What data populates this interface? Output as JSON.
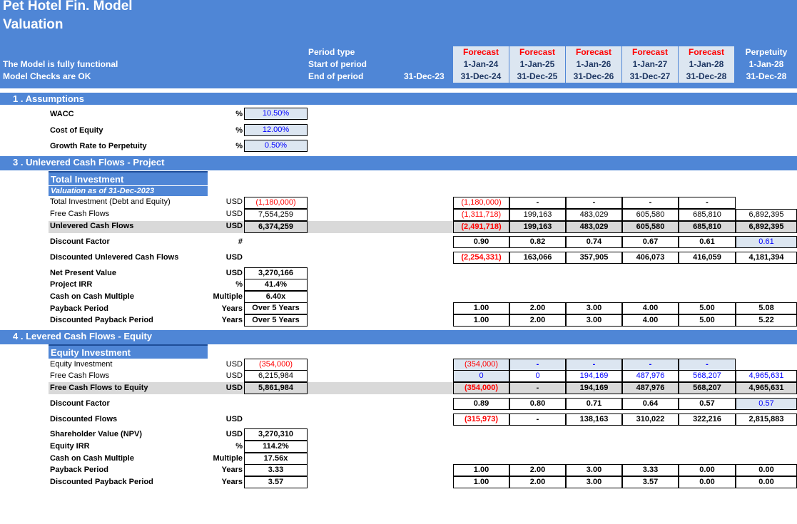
{
  "header": {
    "title": "Pet Hotel Fin. Model",
    "subtitle": "Valuation",
    "status_line_1": "The Model is fully functional",
    "status_line_2": "Model Checks are OK",
    "row_labels": [
      "Period type",
      "Start of period",
      "End of period"
    ],
    "base_date": "31-Dec-23",
    "periods": [
      {
        "type": "Forecast",
        "start": "1-Jan-24",
        "end": "31-Dec-24"
      },
      {
        "type": "Forecast",
        "start": "1-Jan-25",
        "end": "31-Dec-25"
      },
      {
        "type": "Forecast",
        "start": "1-Jan-26",
        "end": "31-Dec-26"
      },
      {
        "type": "Forecast",
        "start": "1-Jan-27",
        "end": "31-Dec-27"
      },
      {
        "type": "Forecast",
        "start": "1-Jan-28",
        "end": "31-Dec-28"
      },
      {
        "type": "Perpetuity",
        "start": "1-Jan-28",
        "end": "31-Dec-28"
      }
    ]
  },
  "assumptions": {
    "title": "1 . Assumptions",
    "rows": [
      {
        "label": "WACC",
        "unit": "%",
        "value": "10.50%"
      },
      {
        "label": "Cost of Equity",
        "unit": "%",
        "value": "12.00%"
      },
      {
        "label": "Growth Rate to Perpetuity",
        "unit": "%",
        "value": "0.50%"
      }
    ]
  },
  "project": {
    "title": "3 . Unlevered Cash Flows - Project",
    "box_title": "Total Investment",
    "box_subtitle": "Valuation as of 31-Dec-2023",
    "rows": [
      {
        "label": "Total Investment (Debt and Equity)",
        "unit": "USD",
        "total": "(1,180,000)",
        "values": [
          "(1,180,000)",
          "-",
          "-",
          "-",
          "-",
          ""
        ]
      },
      {
        "label": "Free Cash Flows",
        "unit": "USD",
        "total": "7,554,259",
        "values": [
          "(1,311,718)",
          "199,163",
          "483,029",
          "605,580",
          "685,810",
          "6,892,395"
        ]
      },
      {
        "label": "Unlevered Cash Flows",
        "unit": "USD",
        "total": "6,374,259",
        "values": [
          "(2,491,718)",
          "199,163",
          "483,029",
          "605,580",
          "685,810",
          "6,892,395"
        ]
      },
      {
        "label": "Discount Factor",
        "unit": "#",
        "values": [
          "0.90",
          "0.82",
          "0.74",
          "0.67",
          "0.61",
          "0.61"
        ]
      },
      {
        "label": "Discounted Unlevered Cash Flows",
        "unit": "USD",
        "values": [
          "(2,254,331)",
          "163,066",
          "357,905",
          "406,073",
          "416,059",
          "4,181,394"
        ]
      }
    ],
    "metrics": [
      {
        "label": "Net Present Value",
        "unit": "USD",
        "value": "3,270,166"
      },
      {
        "label": "Project IRR",
        "unit": "%",
        "value": "41.4%"
      },
      {
        "label": "Cash on Cash Multiple",
        "unit": "Multiple",
        "value": "6.40x"
      },
      {
        "label": "Payback Period",
        "unit": "Years",
        "value": "Over 5 Years",
        "values": [
          "1.00",
          "2.00",
          "3.00",
          "4.00",
          "5.00",
          "5.08"
        ]
      },
      {
        "label": "Discounted Payback Period",
        "unit": "Years",
        "value": "Over 5 Years",
        "values": [
          "1.00",
          "2.00",
          "3.00",
          "4.00",
          "5.00",
          "5.22"
        ]
      }
    ]
  },
  "equity": {
    "title": "4 . Levered Cash Flows  - Equity",
    "box_title": "Equity Investment",
    "rows": [
      {
        "label": "Equity Investment",
        "unit": "USD",
        "total": "(354,000)",
        "values": [
          "(354,000)",
          "-",
          "-",
          "-",
          "-",
          ""
        ]
      },
      {
        "label": "Free Cash Flows",
        "unit": "USD",
        "total": "6,215,984",
        "values": [
          "0",
          "0",
          "194,169",
          "487,976",
          "568,207",
          "4,965,631"
        ]
      },
      {
        "label": "Free Cash Flows to Equity",
        "unit": "USD",
        "total": "5,861,984",
        "values": [
          "(354,000)",
          "-",
          "194,169",
          "487,976",
          "568,207",
          "4,965,631"
        ]
      },
      {
        "label": "Discount Factor",
        "unit": "",
        "values": [
          "0.89",
          "0.80",
          "0.71",
          "0.64",
          "0.57",
          "0.57"
        ]
      },
      {
        "label": "Discounted Flows",
        "unit": "USD",
        "values": [
          "(315,973)",
          "-",
          "138,163",
          "310,022",
          "322,216",
          "2,815,883"
        ]
      }
    ],
    "metrics": [
      {
        "label": "Shareholder Value (NPV)",
        "unit": "USD",
        "value": "3,270,310"
      },
      {
        "label": "Equity IRR",
        "unit": "%",
        "value": "114.2%"
      },
      {
        "label": "Cash on Cash Multiple",
        "unit": "Multiple",
        "value": "17.56x"
      },
      {
        "label": "Payback Period",
        "unit": "Years",
        "value": "3.33",
        "values": [
          "1.00",
          "2.00",
          "3.00",
          "3.33",
          "0.00",
          "0.00"
        ]
      },
      {
        "label": "Discounted Payback Period",
        "unit": "Years",
        "value": "3.57",
        "values": [
          "1.00",
          "2.00",
          "3.00",
          "3.57",
          "0.00",
          "0.00"
        ]
      }
    ]
  },
  "colors": {
    "header_blue": "#4f86d6",
    "input_fill": "#dce6f1",
    "negative_red": "#ff0000",
    "input_blue": "#0000ff"
  }
}
